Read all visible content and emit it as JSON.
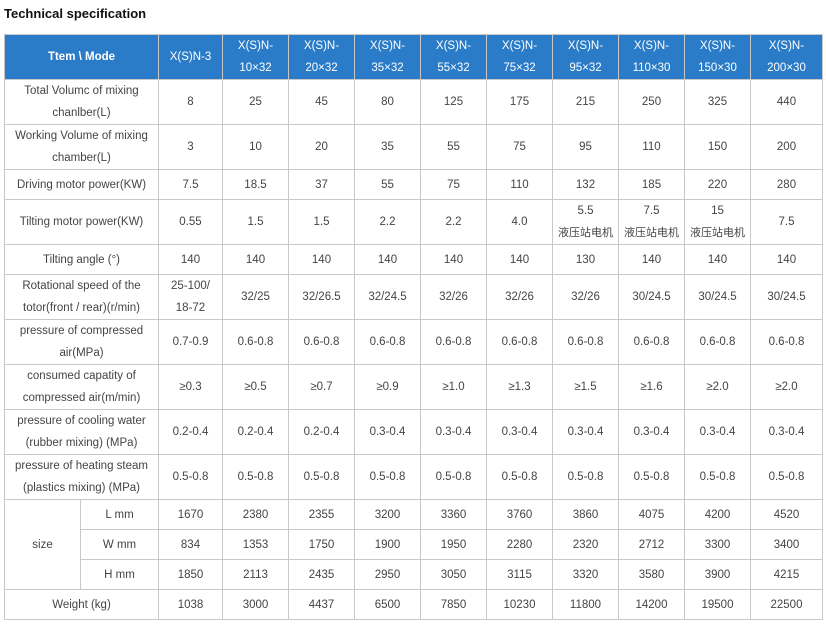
{
  "title": "Technical specification",
  "header": {
    "corner": "Ttem \\ Mode",
    "models": [
      [
        "X(S)N-3"
      ],
      [
        "X(S)N-",
        "10×32"
      ],
      [
        "X(S)N-",
        "20×32"
      ],
      [
        "X(S)N-",
        "35×32"
      ],
      [
        "X(S)N-",
        "55×32"
      ],
      [
        "X(S)N-",
        "75×32"
      ],
      [
        "X(S)N-",
        "95×32"
      ],
      [
        "X(S)N-",
        "110×30"
      ],
      [
        "X(S)N-",
        "150×30"
      ],
      [
        "X(S)N-",
        "200×30"
      ]
    ]
  },
  "rows": {
    "total_volume": {
      "label": [
        "Total Volumc of mixing",
        "chanlber(L)"
      ],
      "values": [
        "8",
        "25",
        "45",
        "80",
        "125",
        "175",
        "215",
        "250",
        "325",
        "440"
      ]
    },
    "working_volume": {
      "label": [
        "Working Volume of mixing",
        "chamber(L)"
      ],
      "values": [
        "3",
        "10",
        "20",
        "35",
        "55",
        "75",
        "95",
        "110",
        "150",
        "200"
      ]
    },
    "driving_motor": {
      "label": [
        "Driving motor power(KW)"
      ],
      "values": [
        "7.5",
        "18.5",
        "37",
        "55",
        "75",
        "110",
        "132",
        "185",
        "220",
        "280"
      ]
    },
    "tilting_motor": {
      "label": [
        "Tilting motor power(KW)"
      ],
      "values": [
        [
          "0.55"
        ],
        [
          "1.5"
        ],
        [
          "1.5"
        ],
        [
          "2.2"
        ],
        [
          "2.2"
        ],
        [
          "4.0"
        ],
        [
          "5.5",
          "液压站电机"
        ],
        [
          "7.5",
          "液压站电机"
        ],
        [
          "15",
          "液压站电机"
        ],
        [
          "7.5"
        ]
      ]
    },
    "tilting_angle": {
      "label": [
        "Tilting angle (°)"
      ],
      "values": [
        "140",
        "140",
        "140",
        "140",
        "140",
        "140",
        "130",
        "140",
        "140",
        "140"
      ]
    },
    "rotational_speed": {
      "label": [
        "Rotational speed of the",
        "totor(front / rear)(r/min)"
      ],
      "values": [
        [
          "25-100/",
          "18-72"
        ],
        [
          "32/25"
        ],
        [
          "32/26.5"
        ],
        [
          "32/24.5"
        ],
        [
          "32/26"
        ],
        [
          "32/26"
        ],
        [
          "32/26"
        ],
        [
          "30/24.5"
        ],
        [
          "30/24.5"
        ],
        [
          "30/24.5"
        ]
      ]
    },
    "compressed_air_pressure": {
      "label": [
        "pressure of compressed",
        "air(MPa)"
      ],
      "values": [
        "0.7-0.9",
        "0.6-0.8",
        "0.6-0.8",
        "0.6-0.8",
        "0.6-0.8",
        "0.6-0.8",
        "0.6-0.8",
        "0.6-0.8",
        "0.6-0.8",
        "0.6-0.8"
      ]
    },
    "consumed_air": {
      "label": [
        "consumed capatity of",
        "compressed air(m/min)"
      ],
      "values": [
        "≥0.3",
        "≥0.5",
        "≥0.7",
        "≥0.9",
        "≥1.0",
        "≥1.3",
        "≥1.5",
        "≥1.6",
        "≥2.0",
        "≥2.0"
      ]
    },
    "cooling_water": {
      "label": [
        "pressure of cooling water",
        "(rubber mixing) (MPa)"
      ],
      "values": [
        "0.2-0.4",
        "0.2-0.4",
        "0.2-0.4",
        "0.3-0.4",
        "0.3-0.4",
        "0.3-0.4",
        "0.3-0.4",
        "0.3-0.4",
        "0.3-0.4",
        "0.3-0.4"
      ]
    },
    "heating_steam": {
      "label": [
        "pressure of heating steam",
        "(plastics mixing) (MPa)"
      ],
      "values": [
        "0.5-0.8",
        "0.5-0.8",
        "0.5-0.8",
        "0.5-0.8",
        "0.5-0.8",
        "0.5-0.8",
        "0.5-0.8",
        "0.5-0.8",
        "0.5-0.8",
        "0.5-0.8"
      ]
    }
  },
  "size": {
    "label": "size",
    "length": {
      "label": "L mm",
      "values": [
        "1670",
        "2380",
        "2355",
        "3200",
        "3360",
        "3760",
        "3860",
        "4075",
        "4200",
        "4520"
      ]
    },
    "width": {
      "label": "W mm",
      "values": [
        "834",
        "1353",
        "1750",
        "1900",
        "1950",
        "2280",
        "2320",
        "2712",
        "3300",
        "3400"
      ]
    },
    "height": {
      "label": "H mm",
      "values": [
        "1850",
        "2113",
        "2435",
        "2950",
        "3050",
        "3115",
        "3320",
        "3580",
        "3900",
        "4215"
      ]
    }
  },
  "weight": {
    "label": "Weight (kg)",
    "values": [
      "1038",
      "3000",
      "4437",
      "6500",
      "7850",
      "10230",
      "11800",
      "14200",
      "19500",
      "22500"
    ]
  }
}
